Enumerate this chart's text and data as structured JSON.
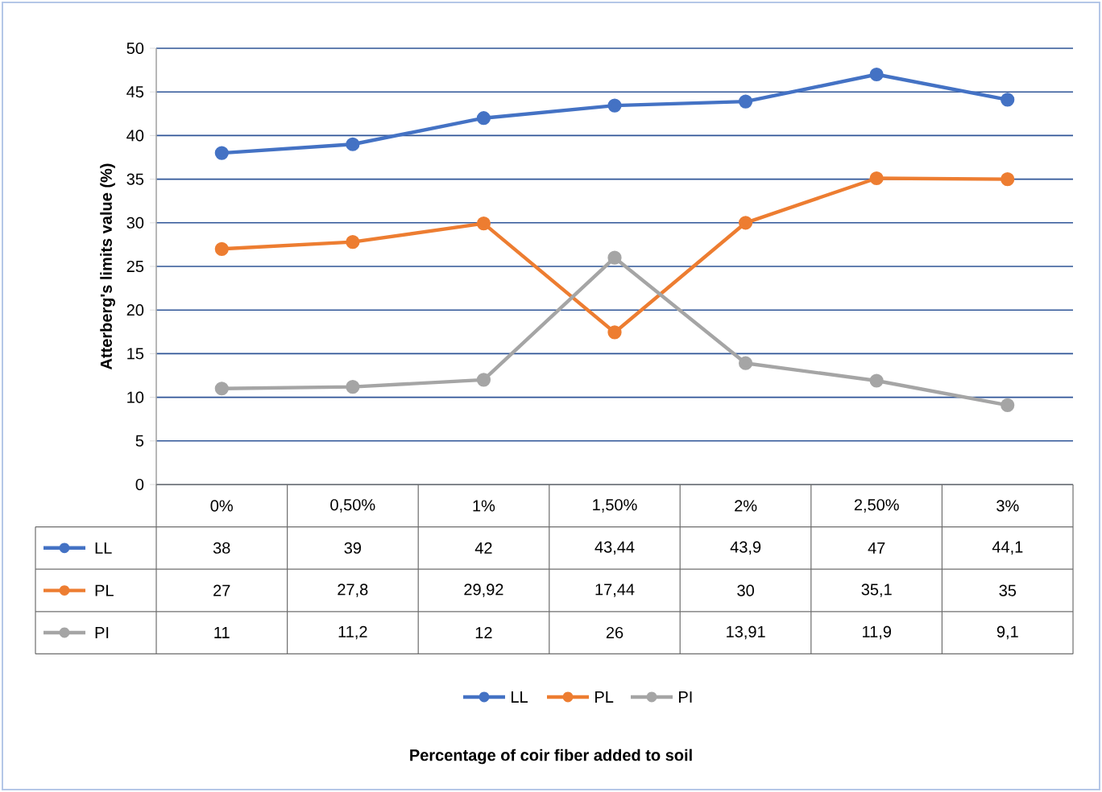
{
  "chart_data": {
    "type": "line",
    "ylabel": "Atterberg's limits value (%)",
    "annotations": [
      "Percentage of coir fiber added to soil"
    ],
    "categories": [
      "0%",
      "0,50%",
      "1%",
      "1,50%",
      "2%",
      "2,50%",
      "3%"
    ],
    "series": [
      {
        "name": "LL",
        "color": "#4472c4",
        "values": [
          38,
          39,
          42,
          43.44,
          43.9,
          47,
          44.1
        ],
        "value_labels": [
          "38",
          "39",
          "42",
          "43,44",
          "43,9",
          "47",
          "44,1"
        ]
      },
      {
        "name": "PL",
        "color": "#ed7d31",
        "values": [
          27,
          27.8,
          29.92,
          17.44,
          30,
          35.1,
          35
        ],
        "value_labels": [
          "27",
          "27,8",
          "29,92",
          "17,44",
          "30",
          "35,1",
          "35"
        ]
      },
      {
        "name": "PI",
        "color": "#a5a5a5",
        "values": [
          11,
          11.2,
          12,
          26,
          13.91,
          11.9,
          9.1
        ],
        "value_labels": [
          "11",
          "11,2",
          "12",
          "26",
          "13,91",
          "11,9",
          "9,1"
        ]
      }
    ],
    "ylim": [
      0,
      50
    ],
    "yticks": [
      0,
      5,
      10,
      15,
      20,
      25,
      30,
      35,
      40,
      45,
      50
    ],
    "grid": "y",
    "legend": "bottom",
    "marker": "circle"
  }
}
